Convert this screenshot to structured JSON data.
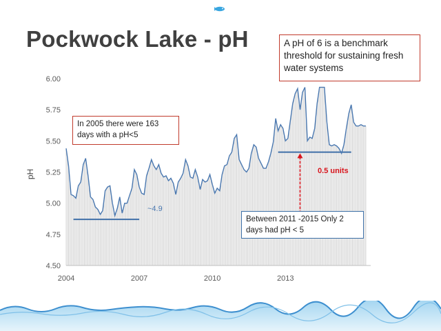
{
  "slide": {
    "title": "Pockwock Lake - pH"
  },
  "callouts": {
    "benchmark": "A pH of 6 is a benchmark threshold for sustaining fresh water systems",
    "note_2005": "In 2005 there were 163 days with a pH<5",
    "note_2011_2015": "Between  2011 -2015 Only 2 days had pH < 5",
    "approx_low": "~4.9",
    "difference": "0.5 units"
  },
  "colors": {
    "line": "#4a78b0",
    "bars": "#d4d4d4",
    "red_callout": "#c0392b",
    "blue_callout": "#3a6ea5",
    "arrow": "#d8141c"
  },
  "chart_data": {
    "type": "line",
    "title": "",
    "xlabel": "",
    "ylabel": "pH",
    "xlim": [
      2004,
      2016.5
    ],
    "ylim": [
      4.5,
      6.0
    ],
    "y_ticks": [
      "4.50",
      "4.75",
      "5.00",
      "5.25",
      "5.50",
      "5.75",
      "6.00"
    ],
    "x_ticks": [
      "2004",
      "2007",
      "2010",
      "2013"
    ],
    "grid": false,
    "background_bars": "daily observations (vertical light gray bars)",
    "series": [
      {
        "x": [
          2004.0,
          2004.1,
          2004.2,
          2004.3,
          2004.4,
          2004.5,
          2004.6,
          2004.7,
          2004.8,
          2004.9,
          2005.0,
          2005.1,
          2005.2,
          2005.3,
          2005.4,
          2005.5,
          2005.6,
          2005.7,
          2005.8,
          2005.9,
          2006.0,
          2006.1,
          2006.2,
          2006.3,
          2006.4,
          2006.5,
          2006.6,
          2006.7,
          2006.8,
          2006.9,
          2007.0,
          2007.1,
          2007.2,
          2007.3,
          2007.4,
          2007.5,
          2007.6,
          2007.7,
          2007.8,
          2007.9,
          2008.0,
          2008.1,
          2008.2,
          2008.3,
          2008.4,
          2008.5,
          2008.6,
          2008.7,
          2008.8,
          2008.9,
          2009.0,
          2009.1,
          2009.2,
          2009.3,
          2009.4,
          2009.5,
          2009.6,
          2009.7,
          2009.8,
          2009.9,
          2010.0,
          2010.1,
          2010.2,
          2010.3,
          2010.4,
          2010.5,
          2010.6,
          2010.7,
          2010.8,
          2010.9,
          2011.0,
          2011.1,
          2011.2,
          2011.3,
          2011.4,
          2011.5,
          2011.6,
          2011.7,
          2011.8,
          2011.9,
          2012.0,
          2012.1,
          2012.2,
          2012.3,
          2012.4,
          2012.5,
          2012.6,
          2012.7,
          2012.8,
          2012.9,
          2013.0,
          2013.1,
          2013.2,
          2013.3,
          2013.4,
          2013.5,
          2013.6,
          2013.7,
          2013.8,
          2013.9,
          2014.0,
          2014.1,
          2014.2,
          2014.3,
          2014.4,
          2014.5,
          2014.6,
          2014.7,
          2014.8,
          2014.9,
          2015.0,
          2015.1,
          2015.2,
          2015.3,
          2015.4,
          2015.5,
          2015.6,
          2015.7,
          2015.8,
          2015.9,
          2016.0,
          2016.1,
          2016.2,
          2016.3
        ],
        "y": [
          5.44,
          5.3,
          5.07,
          5.06,
          5.04,
          5.14,
          5.17,
          5.31,
          5.36,
          5.22,
          5.05,
          5.03,
          4.97,
          4.95,
          4.91,
          4.94,
          5.1,
          5.13,
          5.14,
          5.0,
          4.9,
          4.96,
          5.05,
          4.92,
          5.0,
          5.0,
          5.06,
          5.12,
          5.27,
          5.23,
          5.13,
          5.08,
          5.07,
          5.22,
          5.28,
          5.35,
          5.3,
          5.27,
          5.31,
          5.24,
          5.21,
          5.22,
          5.18,
          5.2,
          5.16,
          5.07,
          5.17,
          5.2,
          5.24,
          5.35,
          5.3,
          5.21,
          5.2,
          5.27,
          5.21,
          5.11,
          5.19,
          5.17,
          5.18,
          5.23,
          5.15,
          5.08,
          5.12,
          5.1,
          5.23,
          5.3,
          5.31,
          5.38,
          5.41,
          5.52,
          5.55,
          5.35,
          5.31,
          5.27,
          5.25,
          5.28,
          5.4,
          5.47,
          5.45,
          5.36,
          5.32,
          5.28,
          5.28,
          5.33,
          5.4,
          5.49,
          5.68,
          5.58,
          5.63,
          5.6,
          5.5,
          5.52,
          5.66,
          5.8,
          5.88,
          5.92,
          5.75,
          5.89,
          5.93,
          5.5,
          5.53,
          5.52,
          5.6,
          5.8,
          5.93,
          5.93,
          5.93,
          5.65,
          5.47,
          5.46,
          5.47,
          5.46,
          5.44,
          5.4,
          5.47,
          5.6,
          5.72,
          5.79,
          5.65,
          5.62,
          5.62,
          5.63,
          5.62,
          5.62
        ]
      }
    ],
    "reference_lines": [
      {
        "y": 4.87,
        "x_start": 2004.3,
        "x_end": 2007.0,
        "label": "~4.9"
      },
      {
        "y": 5.41,
        "x_start": 2012.7,
        "x_end": 2015.7,
        "label": ""
      }
    ],
    "annotations": [
      {
        "type": "double_arrow",
        "x": 2013.6,
        "y_from": 5.4,
        "y_to": 4.88,
        "label": "0.5 units"
      }
    ]
  }
}
